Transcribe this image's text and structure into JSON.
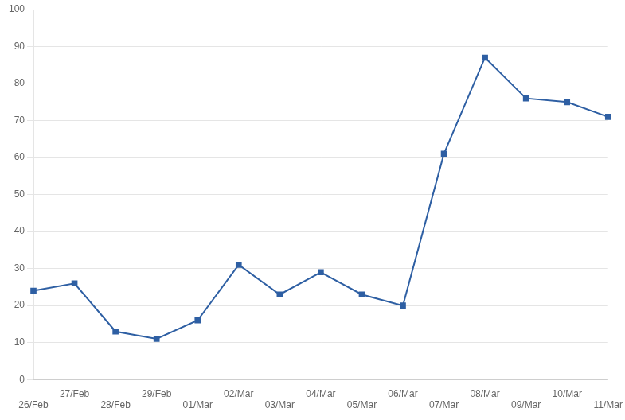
{
  "chart_data": {
    "type": "line",
    "categories": [
      "26/Feb",
      "27/Feb",
      "28/Feb",
      "29/Feb",
      "01/Mar",
      "02/Mar",
      "03/Mar",
      "04/Mar",
      "05/Mar",
      "06/Mar",
      "07/Mar",
      "08/Mar",
      "09/Mar",
      "10/Mar",
      "11/Mar"
    ],
    "values": [
      24,
      26,
      13,
      11,
      16,
      31,
      23,
      29,
      23,
      20,
      61,
      87,
      76,
      75,
      71
    ],
    "color": "#2E5FA3",
    "marker": "square",
    "ylim": [
      0,
      100
    ],
    "yticks": [
      0,
      10,
      20,
      30,
      40,
      50,
      60,
      70,
      80,
      90,
      100
    ],
    "grid": "y"
  }
}
